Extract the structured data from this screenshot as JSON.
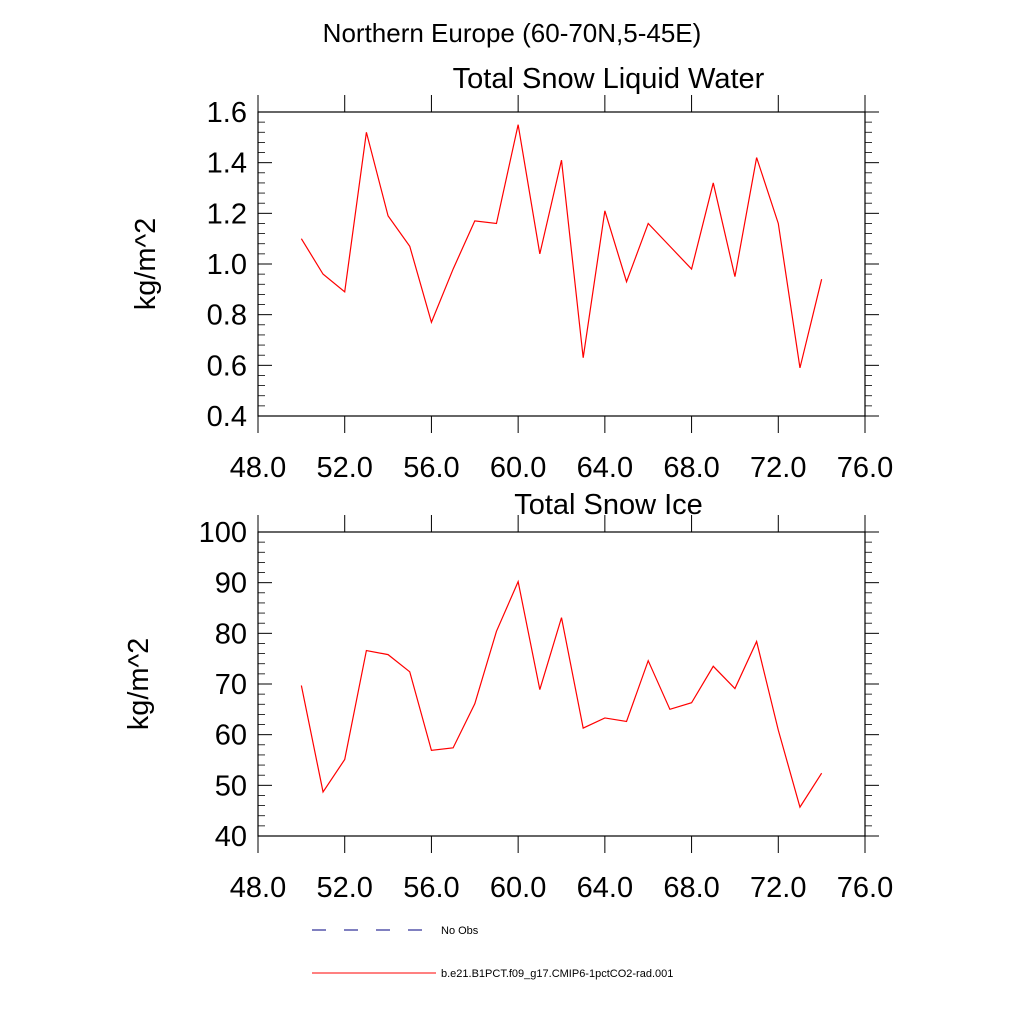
{
  "figure": {
    "suptitle": "Northern Europe (60-70N,5-45E)",
    "line_color": "#ff0000"
  },
  "chart_data": [
    {
      "type": "line",
      "title": "Total Snow Liquid Water",
      "xlabel": "",
      "ylabel": "kg/m^2",
      "xlim": [
        48,
        76
      ],
      "ylim": [
        0.4,
        1.6
      ],
      "x_ticks": [
        48,
        52,
        56,
        60,
        64,
        68,
        72,
        76
      ],
      "x_tick_labels": [
        "48.0",
        "52.0",
        "56.0",
        "60.0",
        "64.0",
        "68.0",
        "72.0",
        "76.0"
      ],
      "y_ticks": [
        0.4,
        0.6,
        0.8,
        1.0,
        1.2,
        1.4,
        1.6
      ],
      "y_tick_labels": [
        "0.4",
        "0.6",
        "0.8",
        "1.0",
        "1.2",
        "1.4",
        "1.6"
      ],
      "grid": false,
      "x": [
        50,
        51,
        52,
        53,
        54,
        55,
        56,
        57,
        58,
        59,
        60,
        61,
        62,
        63,
        64,
        65,
        66,
        67,
        68,
        69,
        70,
        71,
        72,
        73,
        74
      ],
      "series": [
        {
          "name": "b.e21.B1PCT.f09_g17.CMIP6-1pctCO2-rad.001",
          "values": [
            1.1,
            0.96,
            0.89,
            1.52,
            1.19,
            1.07,
            0.77,
            0.98,
            1.17,
            1.16,
            1.55,
            1.04,
            1.41,
            0.63,
            1.21,
            0.93,
            1.16,
            1.07,
            0.98,
            1.32,
            0.95,
            1.42,
            1.16,
            0.59,
            0.94
          ]
        }
      ]
    },
    {
      "type": "line",
      "title": "Total Snow Ice",
      "xlabel": "",
      "ylabel": "kg/m^2",
      "xlim": [
        48,
        76
      ],
      "ylim": [
        40,
        100
      ],
      "x_ticks": [
        48,
        52,
        56,
        60,
        64,
        68,
        72,
        76
      ],
      "x_tick_labels": [
        "48.0",
        "52.0",
        "56.0",
        "60.0",
        "64.0",
        "68.0",
        "72.0",
        "76.0"
      ],
      "y_ticks": [
        40,
        50,
        60,
        70,
        80,
        90,
        100
      ],
      "y_tick_labels": [
        "40",
        "50",
        "60",
        "70",
        "80",
        "90",
        "100"
      ],
      "grid": false,
      "x": [
        50,
        51,
        52,
        53,
        54,
        55,
        56,
        57,
        58,
        59,
        60,
        61,
        62,
        63,
        64,
        65,
        66,
        67,
        68,
        69,
        70,
        71,
        72,
        73,
        74
      ],
      "series": [
        {
          "name": "b.e21.B1PCT.f09_g17.CMIP6-1pctCO2-rad.001",
          "values": [
            69.7,
            48.7,
            55.1,
            76.6,
            75.8,
            72.4,
            56.9,
            57.4,
            66.1,
            80.4,
            90.2,
            68.9,
            83.1,
            61.3,
            63.3,
            62.6,
            74.6,
            65.0,
            66.3,
            73.5,
            69.1,
            78.4,
            60.9,
            45.7,
            52.4
          ]
        }
      ]
    }
  ],
  "legend": {
    "placement": "bottom",
    "entries": [
      {
        "label": "No Obs",
        "style": "dashed",
        "color": "#000080"
      },
      {
        "label": "b.e21.B1PCT.f09_g17.CMIP6-1pctCO2-rad.001",
        "style": "solid",
        "color": "#ff0000"
      }
    ]
  }
}
